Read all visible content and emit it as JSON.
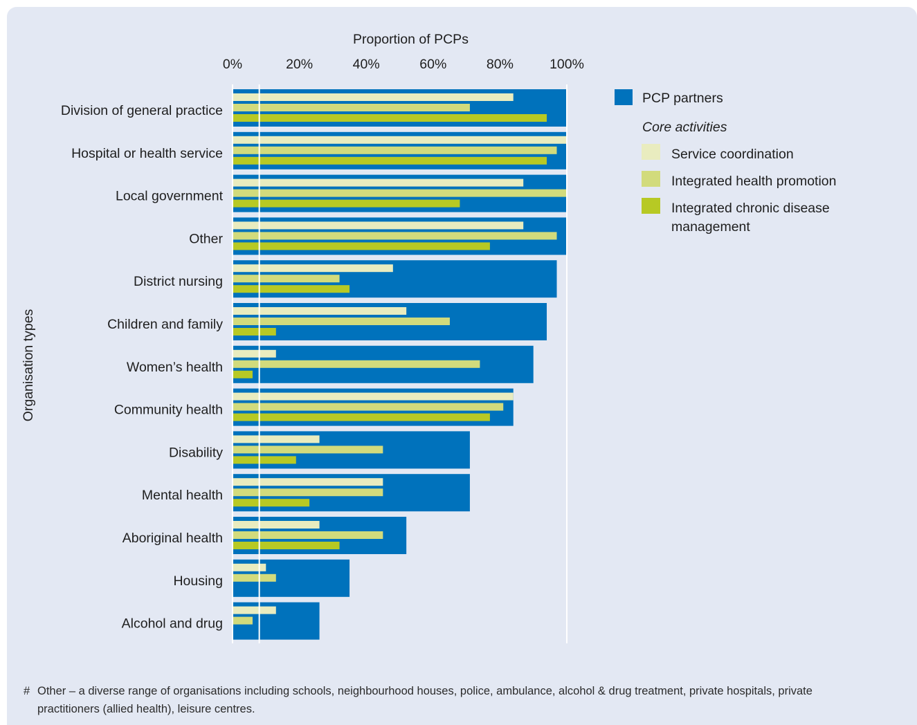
{
  "chart_data": {
    "type": "bar",
    "orientation": "horizontal",
    "title": "",
    "xlabel": "Proportion of PCPs",
    "ylabel": "Organisation types",
    "xlim": [
      0,
      100
    ],
    "x_ticks": [
      "0%",
      "20%",
      "40%",
      "60%",
      "80%",
      "100%"
    ],
    "categories": [
      "Division of general practice",
      "Hospital or health service",
      "Local government",
      "Other",
      "District nursing",
      "Children and family",
      "Women’s health",
      "Community health",
      "Disability",
      "Mental health",
      "Aboriginal health",
      "Housing",
      "Alcohol and drug"
    ],
    "series": [
      {
        "name": "PCP partners",
        "color": "#0072bc",
        "values": [
          100,
          100,
          100,
          100,
          97,
          94,
          90,
          84,
          71,
          71,
          52,
          35,
          26
        ]
      },
      {
        "name": "Service coordination",
        "color": "#e9ecbf",
        "values": [
          84,
          100,
          87,
          87,
          48,
          52,
          13,
          84,
          26,
          45,
          26,
          10,
          13
        ]
      },
      {
        "name": "Integrated health promotion",
        "color": "#d2db7c",
        "values": [
          71,
          97,
          100,
          97,
          32,
          65,
          74,
          81,
          45,
          45,
          45,
          13,
          6
        ]
      },
      {
        "name": "Integrated chronic disease management",
        "color": "#b7c924",
        "values": [
          94,
          94,
          68,
          77,
          35,
          13,
          6,
          77,
          19,
          23,
          32,
          0,
          0
        ]
      }
    ],
    "legend": {
      "position": "right",
      "subheading": "Core activities"
    },
    "grid": true
  },
  "footnote": {
    "mark": "#",
    "text": "Other – a diverse range of organisations including schools, neighbourhood houses, police, ambulance, alcohol & drug treatment, private hospitals, private practitioners (allied health), leisure centres."
  }
}
